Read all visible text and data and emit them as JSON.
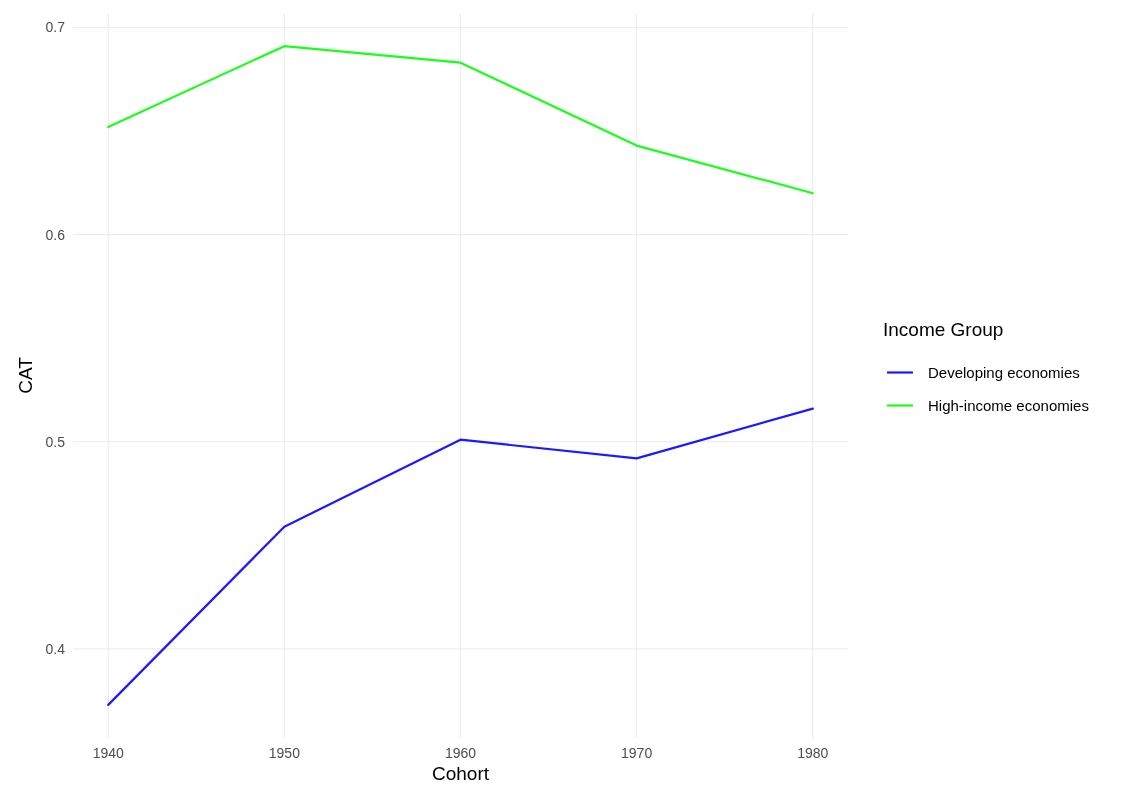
{
  "chart_data": {
    "type": "line",
    "xlabel": "Cohort",
    "ylabel": "CAT",
    "legend_title": "Income Group",
    "x": [
      1940,
      1950,
      1960,
      1970,
      1980
    ],
    "series": [
      {
        "name": "Developing economies",
        "color": "#1a1aff",
        "values": [
          0.373,
          0.459,
          0.501,
          0.492,
          0.516
        ]
      },
      {
        "name": "High-income economies",
        "color": "#1aff1a",
        "values": [
          0.652,
          0.691,
          0.683,
          0.643,
          0.62
        ]
      }
    ],
    "xlim": [
      1938,
      1982
    ],
    "ylim": [
      0.357,
      0.707
    ],
    "xticks": [
      1940,
      1950,
      1960,
      1970,
      1980
    ],
    "yticks": [
      0.4,
      0.5,
      0.6,
      0.7
    ],
    "grid": true,
    "legend": "right",
    "line_style": "solid",
    "marker": "none"
  }
}
